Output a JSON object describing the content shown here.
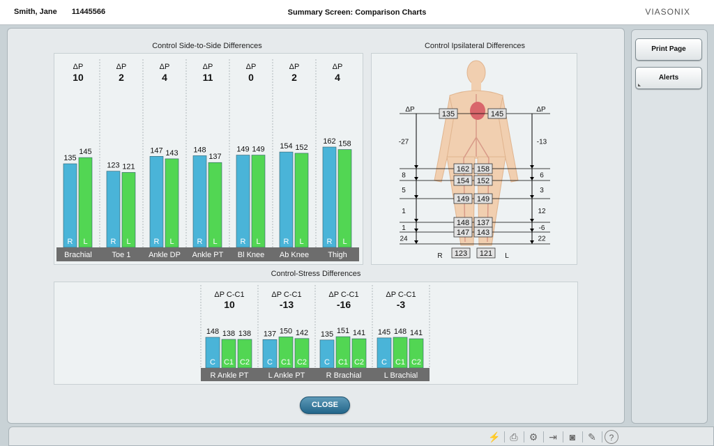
{
  "header": {
    "patient_name": "Smith, Jane",
    "patient_id": "11445566",
    "title": "Summary Screen: Comparison Charts",
    "brand": "VIASONIX"
  },
  "sidebar": {
    "print_label": "Print Page",
    "alerts_label": "Alerts"
  },
  "sections": {
    "side_to_side": "Control Side-to-Side Differences",
    "ipsilateral": "Control Ipsilateral Differences",
    "stress": "Control-Stress Differences"
  },
  "colors": {
    "right_bar": "#4ab4d8",
    "left_bar": "#52d653",
    "category_band": "#6d6d6d"
  },
  "chart_data": [
    {
      "type": "bar",
      "title": "Control Side-to-Side Differences",
      "categories": [
        "Brachial",
        "Toe 1",
        "Ankle DP",
        "Ankle PT",
        "Bl Knee",
        "Ab Knee",
        "Thigh"
      ],
      "delta_label": "ΔP",
      "delta_values": [
        10,
        2,
        4,
        11,
        0,
        2,
        4
      ],
      "series": [
        {
          "name": "R",
          "values": [
            135,
            123,
            147,
            148,
            149,
            154,
            162
          ]
        },
        {
          "name": "L",
          "values": [
            145,
            121,
            143,
            137,
            149,
            152,
            158
          ]
        }
      ],
      "ylim": [
        0,
        175
      ]
    },
    {
      "type": "bar",
      "title": "Control-Stress Differences",
      "categories": [
        "R Ankle PT",
        "L Ankle PT",
        "R Brachial",
        "L Brachial"
      ],
      "delta_label": "ΔP C-C1",
      "delta_values": [
        10,
        -13,
        -16,
        -3
      ],
      "series": [
        {
          "name": "C",
          "values": [
            148,
            137,
            135,
            145
          ]
        },
        {
          "name": "C1",
          "values": [
            138,
            150,
            151,
            148
          ]
        },
        {
          "name": "C2",
          "values": [
            138,
            142,
            141,
            141
          ]
        }
      ],
      "ylim": [
        0,
        310
      ]
    }
  ],
  "ipsilateral": {
    "delta_label": "ΔP",
    "right_label": "R",
    "left_label": "L",
    "levels": [
      {
        "right": "135",
        "left": "145",
        "right_delta": "",
        "left_delta": ""
      },
      {
        "right": "162",
        "left": "158",
        "right_delta": "-27",
        "left_delta": "-13"
      },
      {
        "right": "154",
        "left": "152",
        "right_delta": "8",
        "left_delta": "6"
      },
      {
        "right": "149",
        "left": "149",
        "right_delta": "5",
        "left_delta": "3"
      },
      {
        "right": "148",
        "left": "137",
        "right_delta": "1",
        "left_delta": "12"
      },
      {
        "right": "147",
        "left": "143",
        "right_delta": "1",
        "left_delta": "-6"
      },
      {
        "right": "123",
        "left": "121",
        "right_delta": "24",
        "left_delta": "22"
      }
    ]
  },
  "close_label": "CLOSE",
  "toolbar": {
    "icons": [
      "doppler-probe-icon",
      "printer-icon",
      "settings-gear-icon",
      "export-document-icon",
      "camera-icon",
      "report-edit-icon",
      "help-icon"
    ],
    "glyphs": [
      "⚡",
      "⎙",
      "⚙",
      "⇥",
      "◙",
      "✎",
      "?"
    ]
  }
}
